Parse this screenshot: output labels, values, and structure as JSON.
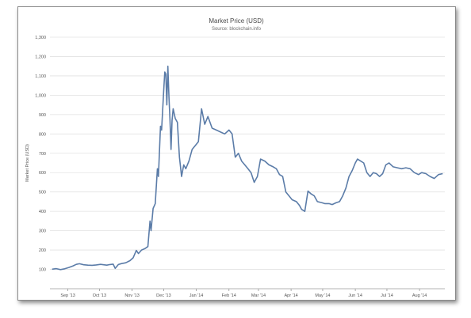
{
  "chart_data": {
    "type": "line",
    "title": "Market Price (USD)",
    "subtitle": "Source: blockchain.info",
    "ylabel": "Market Price (USD)",
    "xlabel": "",
    "ylim": [
      0,
      1300
    ],
    "yticks": [
      100,
      200,
      300,
      400,
      500,
      600,
      700,
      800,
      900,
      1000,
      1100,
      1200,
      1300
    ],
    "ytick_labels": [
      "100",
      "200",
      "300",
      "400",
      "500",
      "600",
      "700",
      "800",
      "900",
      "1,000",
      "1,100",
      "1,200",
      "1,300"
    ],
    "xlim": [
      "2013-08-15",
      "2014-08-25"
    ],
    "xticks": [
      {
        "date": "2013-09-01",
        "label": "Sep '13"
      },
      {
        "date": "2013-10-01",
        "label": "Oct '13"
      },
      {
        "date": "2013-11-01",
        "label": "Nov '13"
      },
      {
        "date": "2013-12-01",
        "label": "Dec '13"
      },
      {
        "date": "2014-01-01",
        "label": "Jan '14"
      },
      {
        "date": "2014-02-01",
        "label": "Feb '14"
      },
      {
        "date": "2014-03-01",
        "label": "Mar '14"
      },
      {
        "date": "2014-04-01",
        "label": "Apr '14"
      },
      {
        "date": "2014-05-01",
        "label": "May '14"
      },
      {
        "date": "2014-06-01",
        "label": "Jun '14"
      },
      {
        "date": "2014-07-01",
        "label": "Jul '14"
      },
      {
        "date": "2014-08-01",
        "label": "Aug '14"
      }
    ],
    "grid": true,
    "legend": false,
    "line_color": "#5b7ca8",
    "grid_color": "#e2e2e2",
    "series": [
      {
        "points": [
          [
            "2013-08-17",
            101
          ],
          [
            "2013-08-21",
            104
          ],
          [
            "2013-08-25",
            99
          ],
          [
            "2013-08-29",
            103
          ],
          [
            "2013-09-02",
            110
          ],
          [
            "2013-09-06",
            118
          ],
          [
            "2013-09-09",
            126
          ],
          [
            "2013-09-12",
            129
          ],
          [
            "2013-09-16",
            124
          ],
          [
            "2013-09-20",
            122
          ],
          [
            "2013-09-24",
            121
          ],
          [
            "2013-09-28",
            123
          ],
          [
            "2013-10-02",
            126
          ],
          [
            "2013-10-05",
            124
          ],
          [
            "2013-10-08",
            122
          ],
          [
            "2013-10-11",
            125
          ],
          [
            "2013-10-14",
            127
          ],
          [
            "2013-10-16",
            105
          ],
          [
            "2013-10-19",
            125
          ],
          [
            "2013-10-22",
            130
          ],
          [
            "2013-10-26",
            134
          ],
          [
            "2013-10-30",
            145
          ],
          [
            "2013-11-02",
            160
          ],
          [
            "2013-11-05",
            198
          ],
          [
            "2013-11-07",
            182
          ],
          [
            "2013-11-10",
            200
          ],
          [
            "2013-11-13",
            207
          ],
          [
            "2013-11-16",
            218
          ],
          [
            "2013-11-18",
            350
          ],
          [
            "2013-11-19",
            300
          ],
          [
            "2013-11-21",
            415
          ],
          [
            "2013-11-23",
            440
          ],
          [
            "2013-11-25",
            620
          ],
          [
            "2013-11-26",
            580
          ],
          [
            "2013-11-28",
            840
          ],
          [
            "2013-11-29",
            820
          ],
          [
            "2013-12-01",
            1020
          ],
          [
            "2013-12-02",
            1120
          ],
          [
            "2013-12-03",
            1110
          ],
          [
            "2013-12-04",
            950
          ],
          [
            "2013-12-05",
            1150
          ],
          [
            "2013-12-06",
            990
          ],
          [
            "2013-12-07",
            870
          ],
          [
            "2013-12-08",
            720
          ],
          [
            "2013-12-09",
            870
          ],
          [
            "2013-12-10",
            930
          ],
          [
            "2013-12-12",
            880
          ],
          [
            "2013-12-14",
            860
          ],
          [
            "2013-12-16",
            680
          ],
          [
            "2013-12-18",
            580
          ],
          [
            "2013-12-20",
            640
          ],
          [
            "2013-12-22",
            620
          ],
          [
            "2013-12-25",
            660
          ],
          [
            "2013-12-28",
            720
          ],
          [
            "2013-12-31",
            740
          ],
          [
            "2014-01-03",
            760
          ],
          [
            "2014-01-06",
            930
          ],
          [
            "2014-01-09",
            850
          ],
          [
            "2014-01-12",
            890
          ],
          [
            "2014-01-16",
            830
          ],
          [
            "2014-01-20",
            820
          ],
          [
            "2014-01-24",
            810
          ],
          [
            "2014-01-28",
            800
          ],
          [
            "2014-02-01",
            820
          ],
          [
            "2014-02-04",
            800
          ],
          [
            "2014-02-07",
            680
          ],
          [
            "2014-02-10",
            700
          ],
          [
            "2014-02-13",
            660
          ],
          [
            "2014-02-16",
            640
          ],
          [
            "2014-02-19",
            620
          ],
          [
            "2014-02-22",
            600
          ],
          [
            "2014-02-25",
            550
          ],
          [
            "2014-02-28",
            580
          ],
          [
            "2014-03-03",
            670
          ],
          [
            "2014-03-07",
            660
          ],
          [
            "2014-03-11",
            640
          ],
          [
            "2014-03-15",
            630
          ],
          [
            "2014-03-18",
            620
          ],
          [
            "2014-03-21",
            590
          ],
          [
            "2014-03-24",
            580
          ],
          [
            "2014-03-27",
            500
          ],
          [
            "2014-03-30",
            480
          ],
          [
            "2014-04-02",
            460
          ],
          [
            "2014-04-06",
            450
          ],
          [
            "2014-04-09",
            430
          ],
          [
            "2014-04-11",
            410
          ],
          [
            "2014-04-14",
            400
          ],
          [
            "2014-04-17",
            505
          ],
          [
            "2014-04-20",
            490
          ],
          [
            "2014-04-23",
            480
          ],
          [
            "2014-04-26",
            450
          ],
          [
            "2014-04-30",
            445
          ],
          [
            "2014-05-03",
            440
          ],
          [
            "2014-05-07",
            440
          ],
          [
            "2014-05-10",
            435
          ],
          [
            "2014-05-14",
            445
          ],
          [
            "2014-05-17",
            450
          ],
          [
            "2014-05-20",
            480
          ],
          [
            "2014-05-23",
            520
          ],
          [
            "2014-05-26",
            580
          ],
          [
            "2014-05-29",
            610
          ],
          [
            "2014-06-01",
            650
          ],
          [
            "2014-06-03",
            670
          ],
          [
            "2014-06-06",
            660
          ],
          [
            "2014-06-09",
            650
          ],
          [
            "2014-06-12",
            600
          ],
          [
            "2014-06-15",
            580
          ],
          [
            "2014-06-18",
            600
          ],
          [
            "2014-06-21",
            595
          ],
          [
            "2014-06-24",
            580
          ],
          [
            "2014-06-27",
            595
          ],
          [
            "2014-06-30",
            640
          ],
          [
            "2014-07-03",
            650
          ],
          [
            "2014-07-07",
            630
          ],
          [
            "2014-07-11",
            625
          ],
          [
            "2014-07-15",
            620
          ],
          [
            "2014-07-19",
            625
          ],
          [
            "2014-07-23",
            620
          ],
          [
            "2014-07-27",
            600
          ],
          [
            "2014-07-31",
            590
          ],
          [
            "2014-08-03",
            600
          ],
          [
            "2014-08-07",
            595
          ],
          [
            "2014-08-11",
            580
          ],
          [
            "2014-08-15",
            570
          ],
          [
            "2014-08-19",
            590
          ],
          [
            "2014-08-23",
            595
          ]
        ]
      }
    ]
  }
}
